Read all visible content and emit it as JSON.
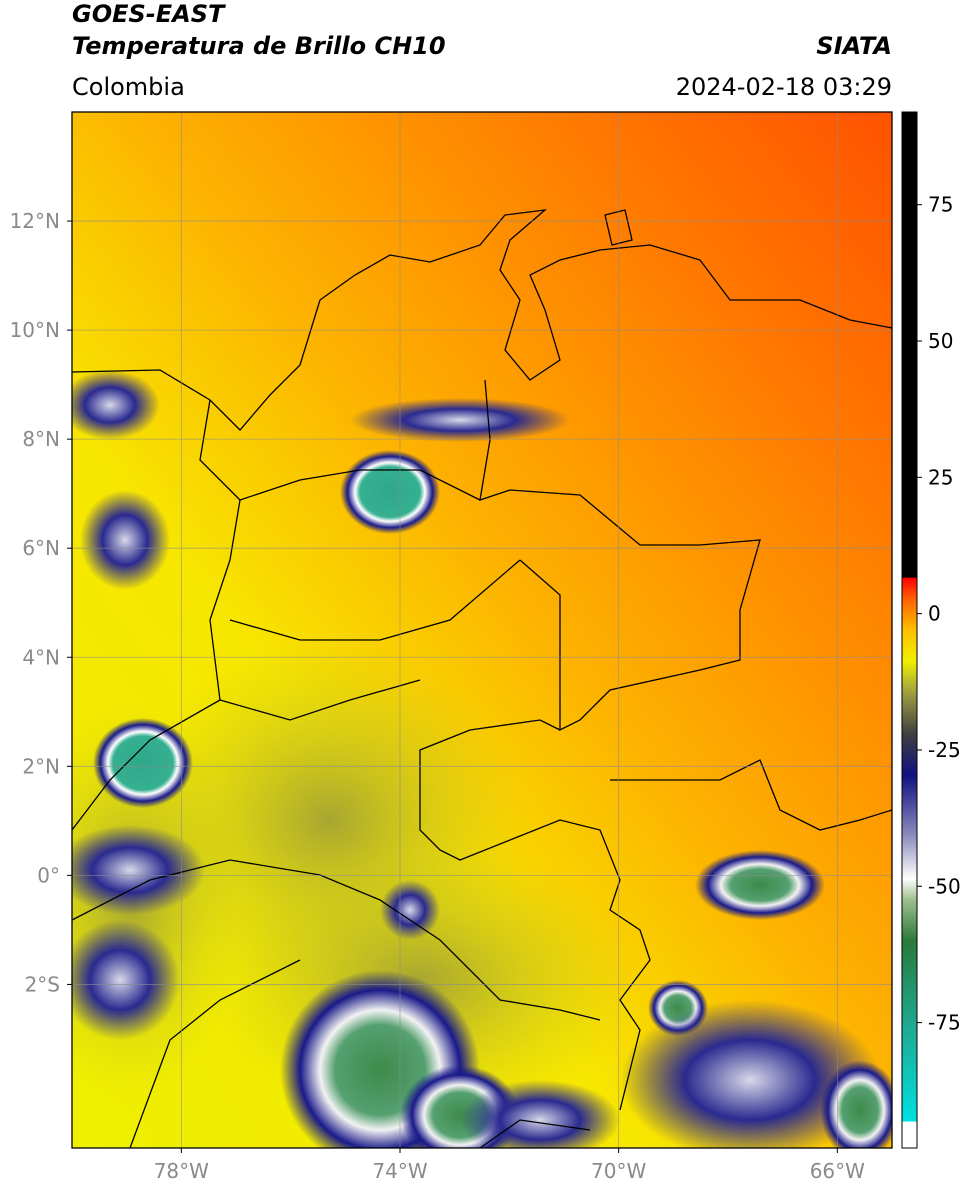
{
  "header": {
    "line1": "GOES-EAST",
    "line2": "Temperatura de Brillo CH10",
    "source": "SIATA",
    "region": "Colombia",
    "datetime": "2024-02-18 03:29"
  },
  "map": {
    "xlim": [
      -80,
      -65
    ],
    "ylim": [
      -5,
      14
    ],
    "xticks": [
      {
        "value": -78,
        "label": "78°W"
      },
      {
        "value": -74,
        "label": "74°W"
      },
      {
        "value": -70,
        "label": "70°W"
      },
      {
        "value": -66,
        "label": "66°W"
      }
    ],
    "yticks": [
      {
        "value": 12,
        "label": "12°N"
      },
      {
        "value": 10,
        "label": "10°N"
      },
      {
        "value": 8,
        "label": "8°N"
      },
      {
        "value": 6,
        "label": "6°N"
      },
      {
        "value": 4,
        "label": "4°N"
      },
      {
        "value": 2,
        "label": "2°N"
      },
      {
        "value": 0,
        "label": "0°"
      },
      {
        "value": -2,
        "label": "2°S"
      }
    ],
    "grid": true
  },
  "colorbar": {
    "lim": [
      -98,
      92
    ],
    "ticks": [
      75,
      50,
      25,
      0,
      -25,
      -50,
      -75
    ]
  }
}
